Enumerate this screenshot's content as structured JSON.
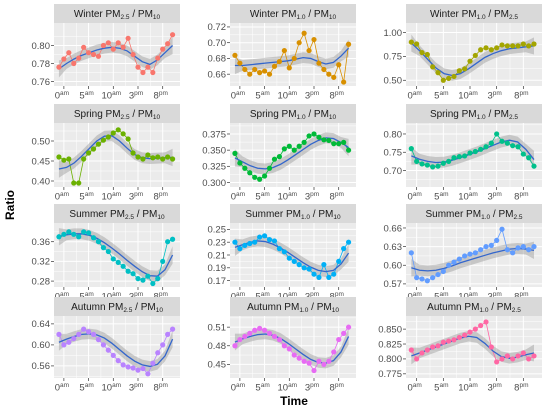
{
  "figure": {
    "xlabel": "Time",
    "ylabel": "Ratio"
  },
  "x_ticks": [
    {
      "value": 0,
      "num": "0",
      "sup": "am"
    },
    {
      "value": 5,
      "num": "5",
      "sup": "am"
    },
    {
      "value": 10,
      "num": "10",
      "sup": "am"
    },
    {
      "value": 15,
      "num": "3",
      "sup": "pm"
    },
    {
      "value": 20,
      "num": "8",
      "sup": "pm"
    }
  ],
  "colors": {
    "panel_bg": "#ebebeb",
    "strip_bg": "#d9d9d9",
    "grid": "#ffffff",
    "smooth_line": "#3366cc",
    "ribbon": "#999999"
  },
  "chart_data": [
    {
      "type": "scatter",
      "season": "Winter",
      "ratio": {
        "num": "PM",
        "num_sub": "2.5",
        "den": "PM",
        "den_sub": "10"
      },
      "color": "#f8766d",
      "ylim": [
        0.755,
        0.825
      ],
      "yticks": [
        0.76,
        0.78,
        0.8
      ],
      "x": [
        -1,
        0,
        1,
        2,
        3,
        4,
        5,
        6,
        7,
        8,
        9,
        10,
        11,
        12,
        13,
        14,
        15,
        16,
        17,
        18,
        19,
        20,
        21,
        22
      ],
      "values": [
        0.776,
        0.785,
        0.792,
        0.78,
        0.786,
        0.798,
        0.792,
        0.79,
        0.788,
        0.8,
        0.803,
        0.796,
        0.803,
        0.798,
        0.808,
        0.79,
        0.776,
        0.77,
        0.776,
        0.77,
        0.786,
        0.796,
        0.802,
        0.812
      ],
      "smooth": [
        0.774,
        0.78,
        0.785,
        0.789,
        0.792,
        0.795,
        0.797,
        0.798,
        0.797,
        0.794,
        0.788,
        0.782,
        0.779,
        0.784,
        0.792,
        0.8
      ]
    },
    {
      "type": "scatter",
      "season": "Winter",
      "ratio": {
        "num": "PM",
        "num_sub": "1.0",
        "den": "PM",
        "den_sub": "10"
      },
      "color": "#d89000",
      "ylim": [
        0.645,
        0.725
      ],
      "yticks": [
        0.66,
        0.68,
        0.7,
        0.72
      ],
      "x": [
        -1,
        0,
        1,
        2,
        3,
        4,
        5,
        6,
        7,
        8,
        9,
        10,
        11,
        12,
        13,
        14,
        15,
        16,
        17,
        18,
        19,
        20,
        21,
        22
      ],
      "values": [
        0.684,
        0.674,
        0.666,
        0.66,
        0.666,
        0.662,
        0.664,
        0.66,
        0.67,
        0.676,
        0.69,
        0.668,
        0.68,
        0.7,
        0.712,
        0.69,
        0.704,
        0.674,
        0.666,
        0.66,
        0.656,
        0.672,
        0.65,
        0.698
      ],
      "smooth": [
        0.671,
        0.671,
        0.672,
        0.673,
        0.674,
        0.675,
        0.676,
        0.677,
        0.679,
        0.681,
        0.68,
        0.676,
        0.673,
        0.675,
        0.683,
        0.693
      ]
    },
    {
      "type": "scatter",
      "season": "Winter",
      "ratio": {
        "num": "PM",
        "num_sub": "1.0",
        "den": "PM",
        "den_sub": "2.5"
      },
      "color": "#a3a500",
      "ylim": [
        0.44,
        1.1
      ],
      "yticks": [
        0.5,
        0.75,
        1.0
      ],
      "x": [
        -1,
        0,
        1,
        2,
        3,
        4,
        5,
        6,
        7,
        8,
        9,
        10,
        11,
        12,
        13,
        14,
        15,
        16,
        17,
        18,
        19,
        20,
        21,
        22
      ],
      "values": [
        0.9,
        0.88,
        0.79,
        0.77,
        0.64,
        0.58,
        0.5,
        0.52,
        0.54,
        0.6,
        0.62,
        0.7,
        0.76,
        0.82,
        0.84,
        0.82,
        0.84,
        0.87,
        0.86,
        0.86,
        0.86,
        0.88,
        0.86,
        0.88
      ],
      "smooth": [
        0.89,
        0.81,
        0.72,
        0.63,
        0.57,
        0.55,
        0.57,
        0.62,
        0.68,
        0.74,
        0.78,
        0.81,
        0.83,
        0.84,
        0.85,
        0.86
      ]
    },
    {
      "type": "scatter",
      "season": "Spring",
      "ratio": {
        "num": "PM",
        "num_sub": "2.5",
        "den": "PM",
        "den_sub": "10"
      },
      "color": "#6bb100",
      "ylim": [
        0.385,
        0.545
      ],
      "yticks": [
        0.4,
        0.45,
        0.5
      ],
      "x": [
        -1,
        0,
        1,
        2,
        3,
        4,
        5,
        6,
        7,
        8,
        9,
        10,
        11,
        12,
        13,
        14,
        15,
        16,
        17,
        18,
        19,
        20,
        21,
        22
      ],
      "values": [
        0.46,
        0.452,
        0.455,
        0.395,
        0.395,
        0.455,
        0.47,
        0.48,
        0.492,
        0.502,
        0.51,
        0.52,
        0.528,
        0.518,
        0.505,
        0.47,
        0.46,
        0.455,
        0.465,
        0.458,
        0.46,
        0.455,
        0.46,
        0.455
      ],
      "smooth": [
        0.43,
        0.434,
        0.445,
        0.462,
        0.481,
        0.5,
        0.512,
        0.513,
        0.5,
        0.482,
        0.466,
        0.458,
        0.456,
        0.457,
        0.458,
        0.459
      ]
    },
    {
      "type": "scatter",
      "season": "Spring",
      "ratio": {
        "num": "PM",
        "num_sub": "1.0",
        "den": "PM",
        "den_sub": "10"
      },
      "color": "#00ba38",
      "ylim": [
        0.293,
        0.392
      ],
      "yticks": [
        0.3,
        0.325,
        0.35,
        0.375
      ],
      "x": [
        -1,
        0,
        1,
        2,
        3,
        4,
        5,
        6,
        7,
        8,
        9,
        10,
        11,
        12,
        13,
        14,
        15,
        16,
        17,
        18,
        19,
        20,
        21,
        22
      ],
      "values": [
        0.345,
        0.33,
        0.322,
        0.315,
        0.308,
        0.305,
        0.31,
        0.322,
        0.336,
        0.34,
        0.352,
        0.356,
        0.35,
        0.356,
        0.362,
        0.372,
        0.375,
        0.37,
        0.366,
        0.365,
        0.36,
        0.36,
        0.362,
        0.35
      ],
      "smooth": [
        0.338,
        0.332,
        0.326,
        0.322,
        0.321,
        0.323,
        0.328,
        0.335,
        0.343,
        0.351,
        0.359,
        0.365,
        0.369,
        0.368,
        0.362,
        0.354
      ]
    },
    {
      "type": "scatter",
      "season": "Spring",
      "ratio": {
        "num": "PM",
        "num_sub": "1.0",
        "den": "PM",
        "den_sub": "2.5"
      },
      "color": "#00c08b",
      "ylim": [
        0.655,
        0.83
      ],
      "yticks": [
        0.7,
        0.75,
        0.8
      ],
      "x": [
        -1,
        0,
        1,
        2,
        3,
        4,
        5,
        6,
        7,
        8,
        9,
        10,
        11,
        12,
        13,
        14,
        15,
        16,
        17,
        18,
        19,
        20,
        21,
        22
      ],
      "values": [
        0.76,
        0.725,
        0.718,
        0.715,
        0.71,
        0.712,
        0.72,
        0.725,
        0.735,
        0.738,
        0.74,
        0.748,
        0.752,
        0.758,
        0.765,
        0.775,
        0.8,
        0.78,
        0.775,
        0.768,
        0.765,
        0.745,
        0.735,
        0.712
      ],
      "smooth": [
        0.74,
        0.731,
        0.725,
        0.722,
        0.723,
        0.728,
        0.735,
        0.743,
        0.751,
        0.76,
        0.769,
        0.778,
        0.783,
        0.778,
        0.758,
        0.73
      ]
    },
    {
      "type": "scatter",
      "season": "Summer",
      "ratio": {
        "num": "PM",
        "num_sub": "2.5",
        "den": "PM",
        "den_sub": "10"
      },
      "color": "#00bfc4",
      "ylim": [
        0.268,
        0.398
      ],
      "yticks": [
        0.28,
        0.32,
        0.36
      ],
      "x": [
        -1,
        0,
        1,
        2,
        3,
        4,
        5,
        6,
        7,
        8,
        9,
        10,
        11,
        12,
        13,
        14,
        15,
        16,
        17,
        18,
        19,
        20,
        21,
        22
      ],
      "values": [
        0.37,
        0.375,
        0.38,
        0.375,
        0.37,
        0.38,
        0.378,
        0.368,
        0.36,
        0.348,
        0.34,
        0.325,
        0.318,
        0.31,
        0.3,
        0.295,
        0.285,
        0.282,
        0.29,
        0.275,
        0.285,
        0.32,
        0.36,
        0.365
      ],
      "smooth": [
        0.37,
        0.374,
        0.376,
        0.376,
        0.373,
        0.367,
        0.358,
        0.347,
        0.335,
        0.322,
        0.31,
        0.299,
        0.291,
        0.29,
        0.303,
        0.333
      ]
    },
    {
      "type": "scatter",
      "season": "Summer",
      "ratio": {
        "num": "PM",
        "num_sub": "1.0",
        "den": "PM",
        "den_sub": "10"
      },
      "color": "#00b0f6",
      "ylim": [
        0.16,
        0.26
      ],
      "yticks": [
        0.17,
        0.19,
        0.21,
        0.23,
        0.25
      ],
      "x": [
        -1,
        0,
        1,
        2,
        3,
        4,
        5,
        6,
        7,
        8,
        9,
        10,
        11,
        12,
        13,
        14,
        15,
        16,
        17,
        18,
        19,
        20,
        21,
        22
      ],
      "values": [
        0.23,
        0.22,
        0.225,
        0.228,
        0.23,
        0.238,
        0.24,
        0.234,
        0.232,
        0.22,
        0.215,
        0.205,
        0.2,
        0.195,
        0.19,
        0.188,
        0.18,
        0.175,
        0.195,
        0.175,
        0.18,
        0.2,
        0.22,
        0.23
      ],
      "smooth": [
        0.222,
        0.226,
        0.23,
        0.232,
        0.231,
        0.227,
        0.221,
        0.214,
        0.206,
        0.198,
        0.191,
        0.186,
        0.184,
        0.186,
        0.196,
        0.213
      ]
    },
    {
      "type": "scatter",
      "season": "Summer",
      "ratio": {
        "num": "PM",
        "num_sub": "1.0",
        "den": "PM",
        "den_sub": "2.5"
      },
      "color": "#619cff",
      "ylim": [
        0.565,
        0.668
      ],
      "yticks": [
        0.57,
        0.6,
        0.63,
        0.66
      ],
      "x": [
        -1,
        0,
        1,
        2,
        3,
        4,
        5,
        6,
        7,
        8,
        9,
        10,
        11,
        12,
        13,
        14,
        15,
        16,
        17,
        18,
        19,
        20,
        21,
        22
      ],
      "values": [
        0.62,
        0.58,
        0.578,
        0.575,
        0.58,
        0.585,
        0.59,
        0.6,
        0.605,
        0.61,
        0.615,
        0.618,
        0.62,
        0.625,
        0.63,
        0.632,
        0.64,
        0.658,
        0.625,
        0.62,
        0.628,
        0.63,
        0.625,
        0.63
      ],
      "smooth": [
        0.596,
        0.592,
        0.591,
        0.592,
        0.595,
        0.599,
        0.604,
        0.608,
        0.612,
        0.616,
        0.62,
        0.623,
        0.626,
        0.627,
        0.626,
        0.624
      ]
    },
    {
      "type": "scatter",
      "season": "Autumn",
      "ratio": {
        "num": "PM",
        "num_sub": "2.5",
        "den": "PM",
        "den_sub": "10"
      },
      "color": "#b983ff",
      "ylim": [
        0.537,
        0.655
      ],
      "yticks": [
        0.56,
        0.6,
        0.64
      ],
      "x": [
        -1,
        0,
        1,
        2,
        3,
        4,
        5,
        6,
        7,
        8,
        9,
        10,
        11,
        12,
        13,
        14,
        15,
        16,
        17,
        18,
        19,
        20,
        21,
        22
      ],
      "values": [
        0.62,
        0.6,
        0.605,
        0.612,
        0.62,
        0.63,
        0.625,
        0.62,
        0.61,
        0.6,
        0.59,
        0.58,
        0.57,
        0.562,
        0.558,
        0.556,
        0.552,
        0.555,
        0.545,
        0.565,
        0.585,
        0.6,
        0.62,
        0.63
      ],
      "smooth": [
        0.605,
        0.611,
        0.616,
        0.62,
        0.621,
        0.619,
        0.613,
        0.603,
        0.591,
        0.579,
        0.569,
        0.562,
        0.559,
        0.563,
        0.579,
        0.611
      ]
    },
    {
      "type": "scatter",
      "season": "Autumn",
      "ratio": {
        "num": "PM",
        "num_sub": "1.0",
        "den": "PM",
        "den_sub": "10"
      },
      "color": "#e76bf3",
      "ylim": [
        0.428,
        0.528
      ],
      "yticks": [
        0.45,
        0.48,
        0.51
      ],
      "x": [
        -1,
        0,
        1,
        2,
        3,
        4,
        5,
        6,
        7,
        8,
        9,
        10,
        11,
        12,
        13,
        14,
        15,
        16,
        17,
        18,
        19,
        20,
        21,
        22
      ],
      "values": [
        0.48,
        0.49,
        0.495,
        0.5,
        0.505,
        0.508,
        0.505,
        0.5,
        0.495,
        0.49,
        0.48,
        0.475,
        0.465,
        0.46,
        0.455,
        0.452,
        0.44,
        0.455,
        0.45,
        0.455,
        0.47,
        0.49,
        0.5,
        0.51
      ],
      "smooth": [
        0.486,
        0.491,
        0.495,
        0.498,
        0.499,
        0.497,
        0.492,
        0.484,
        0.475,
        0.466,
        0.458,
        0.453,
        0.452,
        0.456,
        0.47,
        0.495
      ]
    },
    {
      "type": "scatter",
      "season": "Autumn",
      "ratio": {
        "num": "PM",
        "num_sub": "1.0",
        "den": "PM",
        "den_sub": "2.5"
      },
      "color": "#ff67a4",
      "ylim": [
        0.768,
        0.872
      ],
      "yticks": [
        0.775,
        0.8,
        0.825,
        0.85
      ],
      "x": [
        -1,
        0,
        1,
        2,
        3,
        4,
        5,
        6,
        7,
        8,
        9,
        10,
        11,
        12,
        13,
        14,
        15,
        16,
        17,
        18,
        19,
        20,
        21,
        22
      ],
      "values": [
        0.815,
        0.8,
        0.81,
        0.815,
        0.82,
        0.822,
        0.828,
        0.83,
        0.832,
        0.836,
        0.84,
        0.845,
        0.85,
        0.856,
        0.862,
        0.82,
        0.795,
        0.8,
        0.805,
        0.8,
        0.805,
        0.81,
        0.8,
        0.805
      ],
      "smooth": [
        0.805,
        0.81,
        0.815,
        0.82,
        0.825,
        0.83,
        0.835,
        0.838,
        0.836,
        0.826,
        0.813,
        0.804,
        0.801,
        0.803,
        0.807,
        0.81
      ]
    }
  ]
}
